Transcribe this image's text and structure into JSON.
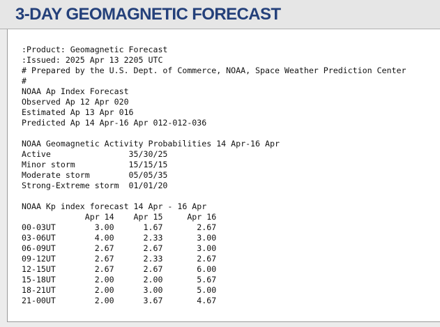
{
  "header": {
    "title": "3-DAY GEOMAGNETIC FORECAST"
  },
  "report": {
    "blocks": [
      [
        ":Product: Geomagnetic Forecast",
        ":Issued: 2025 Apr 13 2205 UTC",
        "# Prepared by the U.S. Dept. of Commerce, NOAA, Space Weather Prediction Center",
        "#",
        "NOAA Ap Index Forecast",
        "Observed Ap 12 Apr 020",
        "Estimated Ap 13 Apr 016",
        "Predicted Ap 14 Apr-16 Apr 012-012-036"
      ],
      [
        "NOAA Geomagnetic Activity Probabilities 14 Apr-16 Apr",
        "Active                35/30/25",
        "Minor storm           15/15/15",
        "Moderate storm        05/05/35",
        "Strong-Extreme storm  01/01/20"
      ],
      [
        "NOAA Kp index forecast 14 Apr - 16 Apr",
        "             Apr 14    Apr 15     Apr 16",
        "00-03UT        3.00      1.67       2.67",
        "03-06UT        4.00      2.33       3.00",
        "06-09UT        2.67      2.67       3.00",
        "09-12UT        2.67      2.33       2.67",
        "12-15UT        2.67      2.67       6.00",
        "15-18UT        2.00      2.00       5.67",
        "18-21UT        2.00      3.00       5.00",
        "21-00UT        2.00      3.67       4.67"
      ]
    ]
  }
}
